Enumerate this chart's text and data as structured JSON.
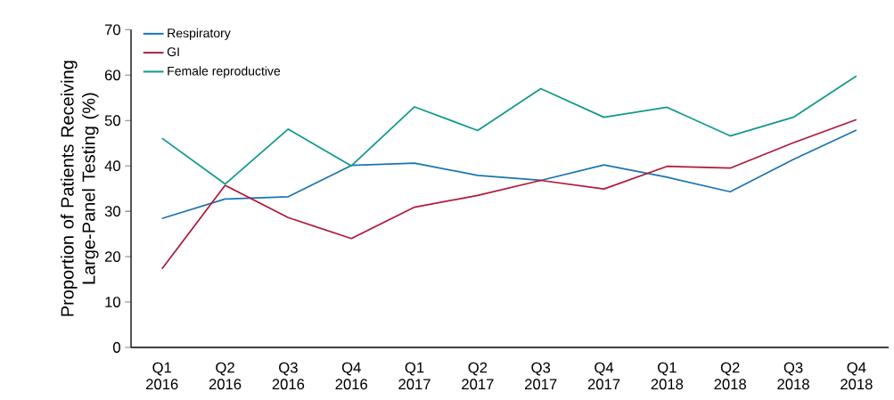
{
  "chart_data": {
    "type": "line",
    "ylabel": "Proportion of Patients Receiving Large-Panel Testing (%)",
    "categories": [
      "Q1 2016",
      "Q2 2016",
      "Q3 2016",
      "Q4 2016",
      "Q1 2017",
      "Q2 2017",
      "Q3 2017",
      "Q4 2017",
      "Q1 2018",
      "Q2 2018",
      "Q3 2018",
      "Q4 2018"
    ],
    "series": [
      {
        "name": "Respiratory",
        "color": "#1a75b0",
        "values": [
          28.4,
          32.7,
          33.2,
          40.1,
          40.6,
          37.9,
          36.8,
          40.2,
          37.5,
          34.3,
          41.4,
          47.9
        ]
      },
      {
        "name": "GI",
        "color": "#b0193a",
        "values": [
          17.3,
          35.7,
          28.6,
          24.0,
          30.9,
          33.5,
          36.8,
          34.9,
          39.9,
          39.5,
          45.1,
          50.2
        ]
      },
      {
        "name": "Female reproductive",
        "color": "#10998c",
        "values": [
          46.1,
          36.0,
          48.1,
          40.0,
          53.0,
          47.8,
          57.0,
          50.7,
          52.9,
          46.6,
          50.7,
          59.8
        ]
      }
    ],
    "ylim": [
      0,
      70
    ],
    "yticks": [
      0,
      10,
      20,
      30,
      40,
      50,
      60,
      70
    ],
    "grid": false,
    "legend": "top left",
    "marker": "none",
    "line_style": "solid"
  }
}
